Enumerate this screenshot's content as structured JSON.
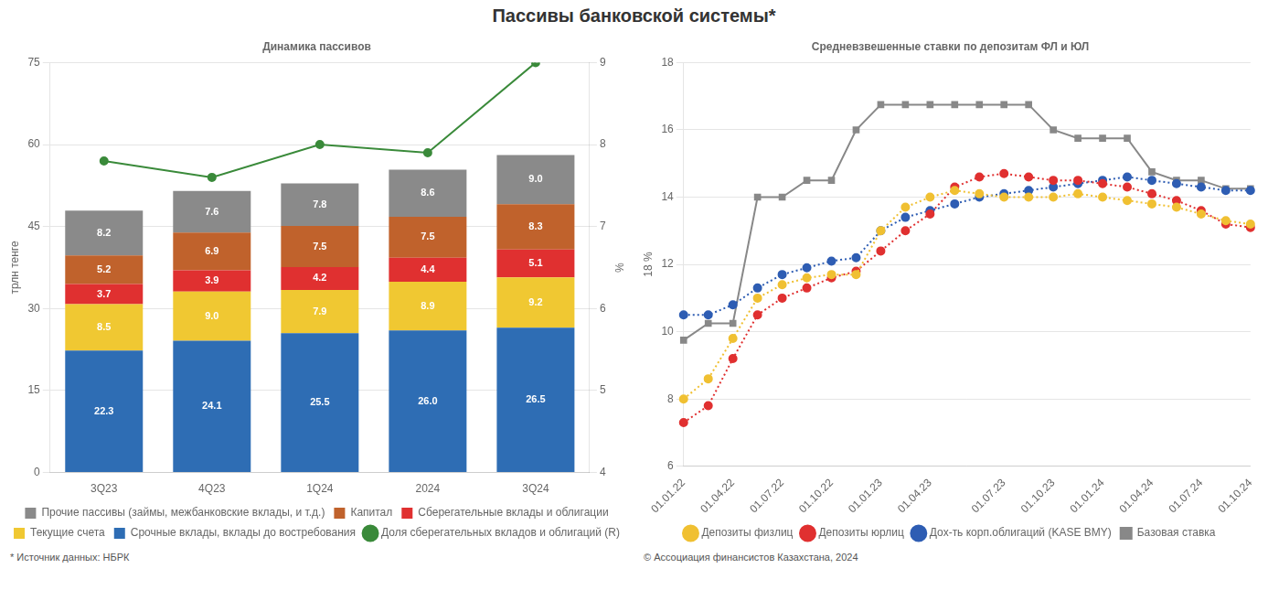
{
  "title": "Пассивы банковской системы*",
  "chart_data": [
    {
      "type": "bar",
      "title": "Динамика пассивов",
      "ylabel": "трлн тенге",
      "y2label": "%",
      "stacked": true,
      "grid": true,
      "legend": "bottom",
      "categories": [
        "3Q23",
        "4Q23",
        "1Q24",
        "2024",
        "3Q24"
      ],
      "series": [
        {
          "name": "Срочные вклады, вклады до востребования",
          "color": "#2e6db4",
          "data_labels": true,
          "values": [
            22.3,
            24.1,
            25.5,
            26.0,
            26.5
          ],
          "value_labels": [
            "22.3",
            "24.1",
            "25.5",
            "26.0",
            "26.5"
          ]
        },
        {
          "name": "Текущие счета",
          "color": "#f0c832",
          "data_labels": true,
          "values": [
            8.5,
            9.0,
            7.9,
            8.9,
            9.2
          ],
          "value_labels": [
            "8.5",
            "9.0",
            "7.9",
            "8.9",
            "9.2"
          ]
        },
        {
          "name": "Сберегательные вклады и облигации",
          "color": "#e03030",
          "data_labels": true,
          "values": [
            3.7,
            3.9,
            4.2,
            4.4,
            5.1
          ],
          "value_labels": [
            "3.7",
            "3.9",
            "4.2",
            "4.4",
            "5.1"
          ]
        },
        {
          "name": "Капитал",
          "color": "#c0622c",
          "data_labels": true,
          "values": [
            5.2,
            6.9,
            7.5,
            7.5,
            8.3
          ],
          "value_labels": [
            "5.2",
            "6.9",
            "7.5",
            "7.5",
            "8.3"
          ]
        },
        {
          "name": "Прочие пассивы (займы, межбанковские вклады, и т.д.)",
          "color": "#8a8a8a",
          "data_labels": true,
          "values": [
            8.2,
            7.6,
            7.8,
            8.6,
            9.0
          ],
          "value_labels": [
            "8.2",
            "7.6",
            "7.8",
            "8.6",
            "9.0"
          ]
        },
        {
          "name": "Доля сберегательных вкладов и облигаций (R)",
          "color": "#3a8a3a",
          "type": "line",
          "marker": "circle",
          "line_style": "solid",
          "axis": "y2",
          "values": [
            7.8,
            7.6,
            8.0,
            7.9,
            9.0
          ]
        }
      ],
      "ylim": [
        0,
        75
      ],
      "yticks": [
        0,
        15,
        30,
        45,
        60,
        75
      ],
      "y2lim": [
        4,
        9
      ],
      "y2ticks": [
        4,
        5,
        6,
        7,
        8,
        9
      ],
      "annotations": [
        "* Источник данных: НБРК"
      ]
    },
    {
      "type": "line",
      "title": "Средневзвешенные ставки по депозитам ФЛ и ЮЛ",
      "ylabel": "18 %",
      "grid": true,
      "legend": "bottom",
      "categories": [
        "01.01.22",
        null,
        "01.04.22",
        null,
        "01.07.22",
        null,
        "01.10.22",
        null,
        "01.01.23",
        null,
        "01.04.23",
        null,
        null,
        "01.07.23",
        null,
        "01.10.23",
        null,
        "01.01.24",
        null,
        "01.04.24",
        null,
        "01.07.24",
        null,
        "01.10.24"
      ],
      "series": [
        {
          "name": "Депозиты физлиц",
          "color": "#f0c032",
          "marker": "circle",
          "line_style": "dotted",
          "values": [
            8.0,
            8.6,
            9.8,
            11.0,
            11.4,
            11.6,
            11.7,
            11.7,
            13.0,
            13.7,
            14.0,
            14.2,
            14.1,
            14.0,
            14.0,
            14.0,
            14.1,
            14.0,
            13.9,
            13.8,
            13.7,
            13.5,
            13.3,
            13.2
          ]
        },
        {
          "name": "Депозиты юрлиц",
          "color": "#e03030",
          "marker": "circle",
          "line_style": "dotted",
          "values": [
            7.3,
            7.8,
            9.2,
            10.5,
            11.0,
            11.3,
            11.6,
            11.8,
            12.4,
            13.0,
            13.5,
            14.3,
            14.6,
            14.7,
            14.6,
            14.5,
            14.5,
            14.4,
            14.3,
            14.1,
            13.9,
            13.6,
            13.2,
            13.1
          ]
        },
        {
          "name": "Дох-ть корп.облигаций (KASE BMY)",
          "color": "#2e5db3",
          "marker": "circle",
          "line_style": "dotted",
          "values": [
            10.5,
            10.5,
            10.8,
            11.3,
            11.7,
            11.9,
            12.1,
            12.2,
            13.0,
            13.4,
            13.6,
            13.8,
            14.0,
            14.1,
            14.2,
            14.3,
            14.4,
            14.5,
            14.6,
            14.5,
            14.4,
            14.3,
            14.2,
            14.2
          ]
        },
        {
          "name": "Базовая ставка",
          "color": "#888888",
          "marker": "square",
          "line_style": "solid",
          "values": [
            9.75,
            10.25,
            10.25,
            14.0,
            14.0,
            14.5,
            14.5,
            16.0,
            16.75,
            16.75,
            16.75,
            16.75,
            16.75,
            16.75,
            16.75,
            16.0,
            15.75,
            15.75,
            15.75,
            14.75,
            14.5,
            14.5,
            14.25,
            14.25
          ]
        }
      ],
      "ylim": [
        6,
        18
      ],
      "yticks": [
        6,
        8,
        10,
        12,
        14,
        16,
        18
      ],
      "annotations": [
        "© Ассоциация финансистов Казахстана, 2024"
      ]
    }
  ]
}
